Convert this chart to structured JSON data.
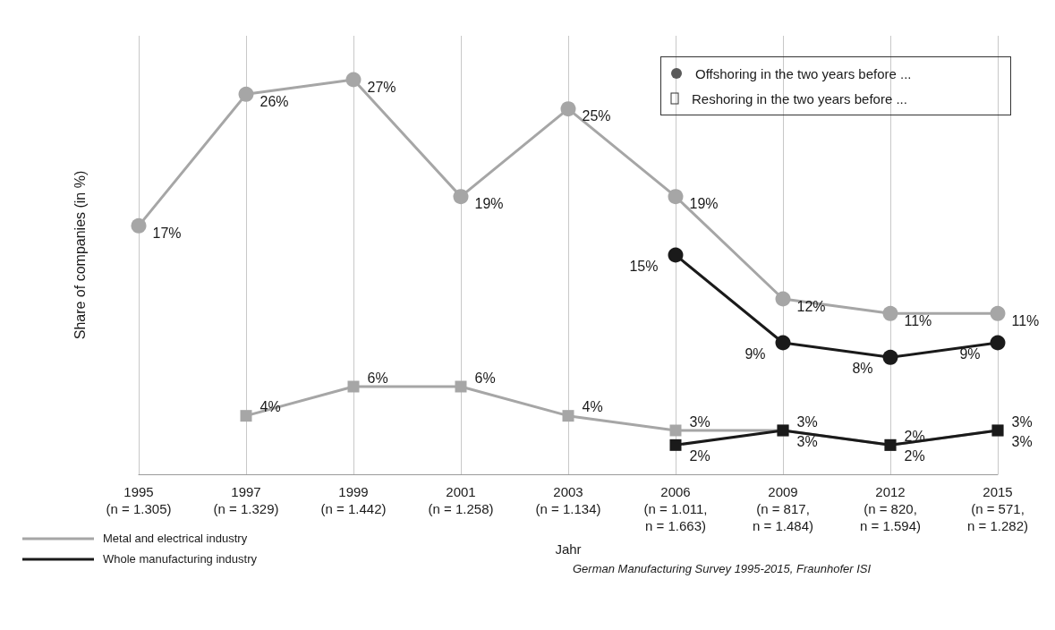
{
  "chart_data": {
    "type": "line",
    "xlabel": "Jahr",
    "ylabel": "Share of companies (in %)",
    "grid": "x",
    "line_style": "solid",
    "categories": [
      "1995\n(n = 1.305)",
      "1997\n(n = 1.329)",
      "1999\n(n = 1.442)",
      "2001\n(n = 1.258)",
      "2003\n(n = 1.134)",
      "2006\n(n = 1.011,\nn = 1.663)",
      "2009\n(n = 817,\nn = 1.484)",
      "2012\n(n = 820,\nn = 1.594)",
      "2015\n(n = 571,\nn = 1.282)"
    ],
    "series": [
      {
        "color": "#a6a6a6",
        "marker": "circle",
        "values": [
          17,
          26,
          27,
          19,
          25,
          19,
          12,
          11,
          11
        ],
        "value_labels": [
          "17%",
          "26%",
          "27%",
          "19%",
          "25%",
          "19%",
          "12%",
          "11%",
          "11%"
        ]
      },
      {
        "color": "#1a1a1a",
        "marker": "circle",
        "values": [
          null,
          null,
          null,
          null,
          null,
          15,
          9,
          8,
          9
        ],
        "value_labels": [
          null,
          null,
          null,
          null,
          null,
          "15%",
          "9%",
          "8%",
          "9%"
        ]
      },
      {
        "color": "#a6a6a6",
        "marker": "square",
        "values": [
          null,
          4,
          6,
          6,
          4,
          3,
          3,
          2,
          3
        ],
        "value_labels": [
          null,
          "4%",
          "6%",
          "6%",
          "4%",
          "3%",
          "3%",
          "2%",
          "3%"
        ]
      },
      {
        "color": "#1a1a1a",
        "marker": "square",
        "values": [
          null,
          null,
          null,
          null,
          null,
          2,
          3,
          2,
          3
        ],
        "value_labels": [
          null,
          null,
          null,
          null,
          null,
          "2%",
          "3%",
          "2%",
          "3%"
        ]
      }
    ],
    "annotations": [
      "Offshoring in the two years before ...",
      "Reshoring in the two years before ...",
      "Metal and electrical industry",
      "Whole manufacturing industry",
      "German Manufacturing Survey 1995-2015, Fraunhofer ISI"
    ]
  }
}
